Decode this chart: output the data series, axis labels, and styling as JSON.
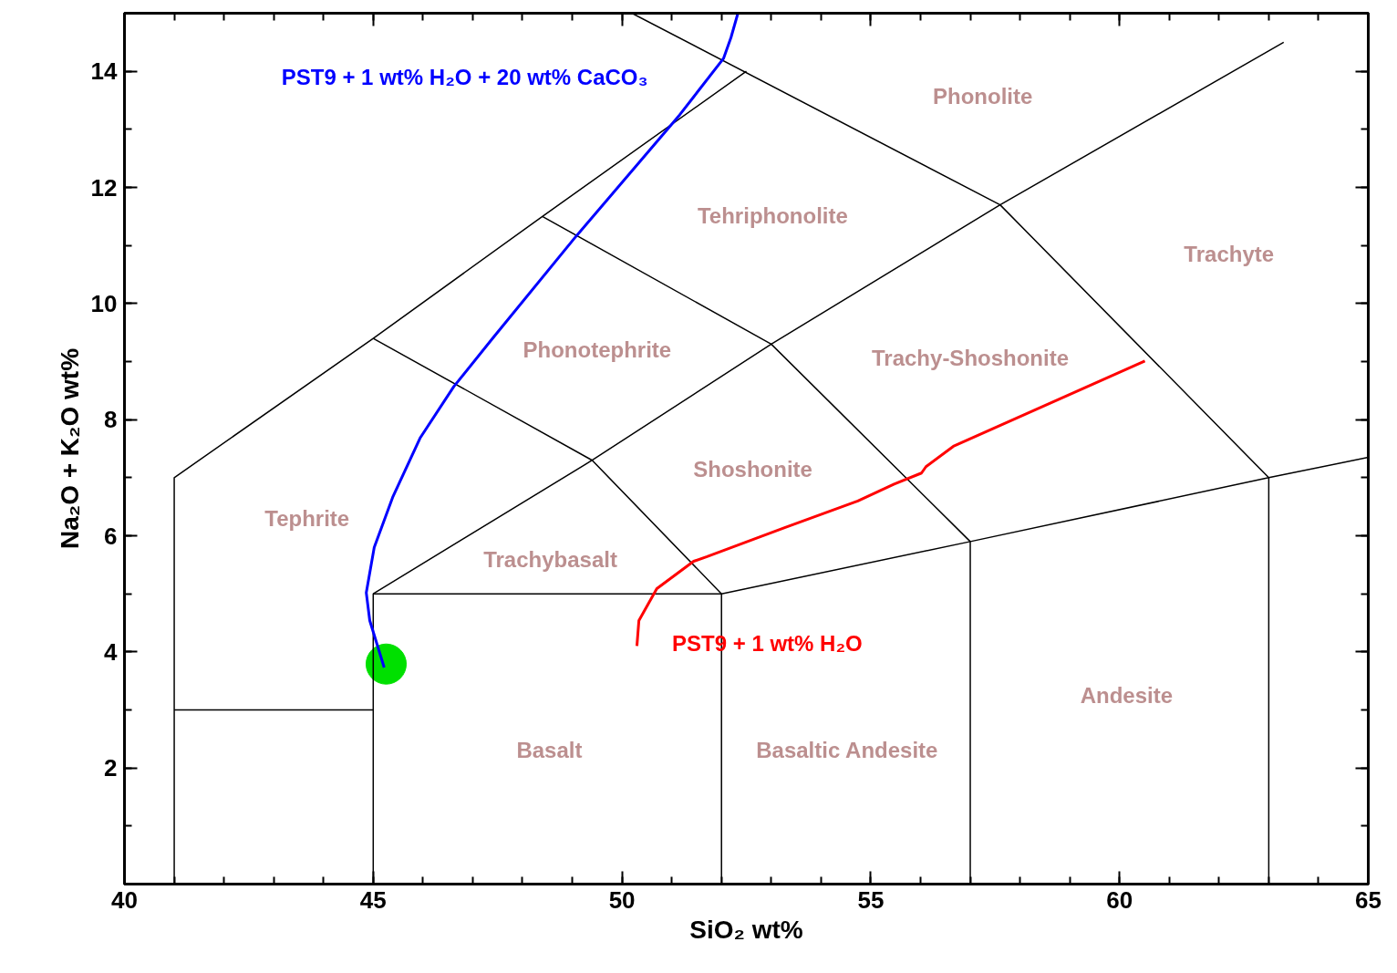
{
  "chart_data": {
    "type": "line",
    "xlabel": "SiO₂ wt%",
    "ylabel": "Na₂O + K₂O wt%",
    "xlim": [
      40,
      65
    ],
    "ylim": [
      0,
      15
    ],
    "xticks": [
      40,
      45,
      50,
      55,
      60,
      65
    ],
    "yticks": [
      2,
      4,
      6,
      8,
      10,
      12,
      14
    ],
    "grid": false,
    "series": [
      {
        "type": "scatter",
        "marker": "circle",
        "color": "#00e000",
        "x": [
          45.26
        ],
        "values": [
          3.79
        ]
      },
      {
        "color": "#000000",
        "x": [
          41,
          41,
          45,
          48.4,
          52.5
        ],
        "values": [
          0,
          7,
          9.4,
          11.5,
          14
        ]
      },
      {
        "color": "#000000",
        "x": [
          41,
          45
        ],
        "values": [
          3,
          3
        ]
      },
      {
        "color": "#000000",
        "x": [
          45,
          45,
          52,
          52
        ],
        "values": [
          0,
          5,
          5,
          0
        ]
      },
      {
        "color": "#000000",
        "x": [
          45,
          49.4,
          53,
          57.6,
          63.3
        ],
        "values": [
          5,
          7.3,
          9.3,
          11.7,
          14.5
        ]
      },
      {
        "color": "#000000",
        "x": [
          45,
          49.4,
          52
        ],
        "values": [
          9.4,
          7.3,
          5
        ]
      },
      {
        "color": "#000000",
        "x": [
          48.4,
          53,
          57,
          57
        ],
        "values": [
          11.5,
          9.3,
          5.9,
          0
        ]
      },
      {
        "color": "#000000",
        "x": [
          52,
          57,
          63,
          65
        ],
        "values": [
          5,
          5.9,
          7,
          7.35
        ]
      },
      {
        "color": "#000000",
        "x": [
          63,
          63,
          57.6,
          50.2
        ],
        "values": [
          0,
          7,
          11.7,
          15
        ]
      },
      {
        "name": "PST9 + 1 wt% H₂O + 20 wt% CaCO₃",
        "color": "#0000ff",
        "x": [
          45.22,
          44.93,
          44.86,
          45.02,
          45.39,
          45.94,
          46.62,
          47.4,
          49.05,
          51.16,
          52.04,
          52.19,
          52.33
        ],
        "values": [
          3.73,
          4.54,
          5.02,
          5.8,
          6.66,
          7.68,
          8.57,
          9.4,
          11.13,
          13.25,
          14.22,
          14.58,
          15.0
        ]
      },
      {
        "name": "PST9 + 1 wt% H₂O",
        "color": "#ff0000",
        "x": [
          50.3,
          50.34,
          50.7,
          51.44,
          51.71,
          53.27,
          54.74,
          55.47,
          56.02,
          56.11,
          56.66,
          60.51
        ],
        "values": [
          4.1,
          4.54,
          5.09,
          5.56,
          5.64,
          6.14,
          6.6,
          6.89,
          7.08,
          7.19,
          7.54,
          9.01
        ]
      }
    ],
    "annotations": [
      "Phonolite",
      "Tehriphonolite",
      "Trachyte",
      "Phonotephrite",
      "Trachy-Shoshonite",
      "Shoshonite",
      "Tephrite",
      "Trachybasalt",
      "Andesite",
      "Basalt",
      "Basaltic Andesite"
    ]
  }
}
